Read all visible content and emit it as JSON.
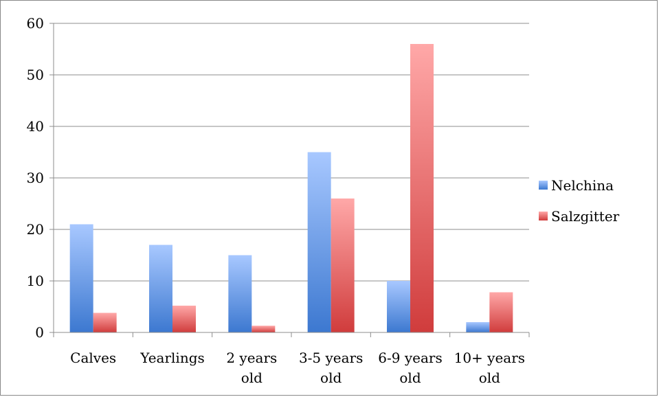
{
  "chart_data": {
    "type": "bar",
    "categories": [
      [
        "Calves"
      ],
      [
        "Yearlings"
      ],
      [
        "2 years",
        "old"
      ],
      [
        "3-5 years",
        "old"
      ],
      [
        "6-9 years",
        "old"
      ],
      [
        "10+ years",
        "old"
      ]
    ],
    "series": [
      {
        "name": "Nelchina",
        "values": [
          21,
          17,
          15,
          35,
          10,
          2
        ],
        "color_light": "#a8c8ff",
        "color_dark": "#3c78d0"
      },
      {
        "name": "Salzgitter",
        "values": [
          3.8,
          5.2,
          1.3,
          26,
          56,
          7.8
        ],
        "color_light": "#ffa8a8",
        "color_dark": "#d03c3c"
      }
    ],
    "ylim": [
      0,
      60
    ],
    "yticks": [
      0,
      10,
      20,
      30,
      40,
      50,
      60
    ],
    "grid": true,
    "legend_position": "right"
  }
}
